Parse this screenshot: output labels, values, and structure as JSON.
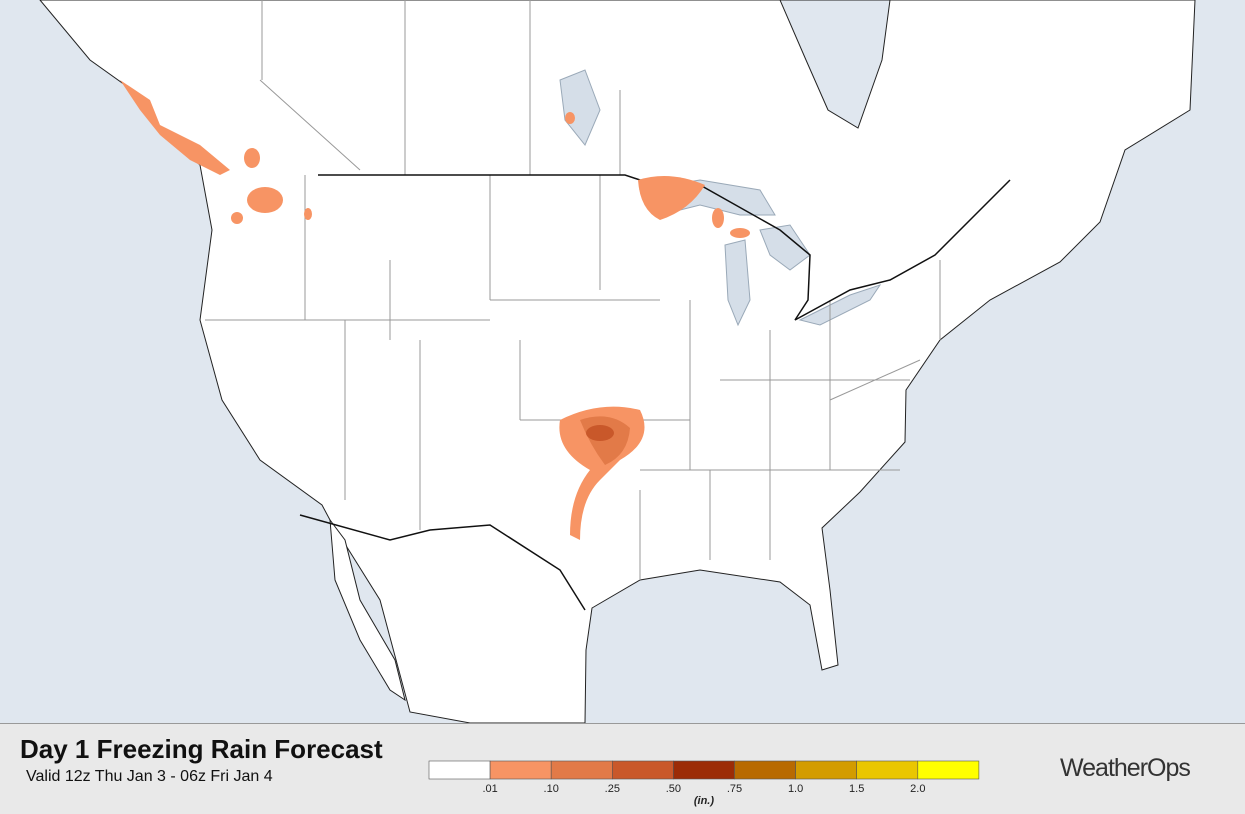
{
  "header": {
    "title": "Day 1 Freezing Rain Forecast",
    "subtitle": "Valid 12z Thu Jan 3 - 06z Fri Jan 4"
  },
  "legend": {
    "colors": [
      "#ffffff",
      "#f79464",
      "#e27a48",
      "#c9582a",
      "#9c2c06",
      "#b86a00",
      "#d39c00",
      "#eac600",
      "#ffff00"
    ],
    "labels": [
      ".01",
      ".10",
      ".25",
      ".50",
      ".75",
      "1.0",
      "1.5",
      "2.0"
    ],
    "unit": "(in.)"
  },
  "brand": "WeatherOps"
}
